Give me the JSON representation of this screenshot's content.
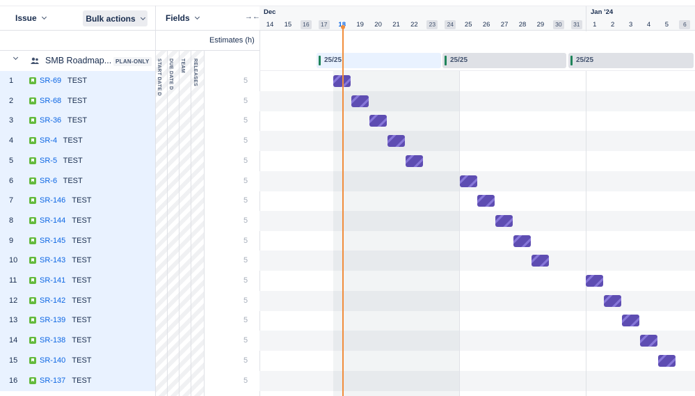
{
  "header": {
    "issue_label": "Issue",
    "bulk_actions_label": "Bulk actions",
    "fields_label": "Fields",
    "collapse_icon": "collapse-arrows-icon",
    "estimates_label": "Estimates (h)"
  },
  "parent": {
    "title": "SMB Roadmap...",
    "badge": "PLAN-ONLY",
    "icon": "people-icon"
  },
  "fields": {
    "columns": [
      "START DATE",
      "DUE DATE",
      "TEAM",
      "RELEASES"
    ],
    "start_date_marker": "D",
    "due_date_marker": "D"
  },
  "issues": [
    {
      "num": "1",
      "key": "SR-69",
      "summary": "TEST",
      "estimate": "5"
    },
    {
      "num": "2",
      "key": "SR-68",
      "summary": "TEST",
      "estimate": "5"
    },
    {
      "num": "3",
      "key": "SR-36",
      "summary": "TEST",
      "estimate": "5"
    },
    {
      "num": "4",
      "key": "SR-4",
      "summary": "TEST",
      "estimate": "5"
    },
    {
      "num": "5",
      "key": "SR-5",
      "summary": "TEST",
      "estimate": "5"
    },
    {
      "num": "6",
      "key": "SR-6",
      "summary": "TEST",
      "estimate": "5"
    },
    {
      "num": "7",
      "key": "SR-146",
      "summary": "TEST",
      "estimate": "5"
    },
    {
      "num": "8",
      "key": "SR-144",
      "summary": "TEST",
      "estimate": "5"
    },
    {
      "num": "9",
      "key": "SR-145",
      "summary": "TEST",
      "estimate": "5"
    },
    {
      "num": "10",
      "key": "SR-143",
      "summary": "TEST",
      "estimate": "5"
    },
    {
      "num": "11",
      "key": "SR-141",
      "summary": "TEST",
      "estimate": "5"
    },
    {
      "num": "12",
      "key": "SR-142",
      "summary": "TEST",
      "estimate": "5"
    },
    {
      "num": "13",
      "key": "SR-139",
      "summary": "TEST",
      "estimate": "5"
    },
    {
      "num": "14",
      "key": "SR-138",
      "summary": "TEST",
      "estimate": "5"
    },
    {
      "num": "15",
      "key": "SR-140",
      "summary": "TEST",
      "estimate": "5"
    },
    {
      "num": "16",
      "key": "SR-137",
      "summary": "TEST",
      "estimate": "5"
    }
  ],
  "timeline": {
    "months": [
      {
        "label": "Dec"
      },
      {
        "label": "Jan ’24"
      }
    ],
    "days": [
      {
        "label": "14",
        "weekend": false
      },
      {
        "label": "15",
        "weekend": false
      },
      {
        "label": "16",
        "weekend": true
      },
      {
        "label": "17",
        "weekend": true
      },
      {
        "label": "18",
        "weekend": false,
        "today": true
      },
      {
        "label": "19",
        "weekend": false
      },
      {
        "label": "20",
        "weekend": false
      },
      {
        "label": "21",
        "weekend": false
      },
      {
        "label": "22",
        "weekend": false
      },
      {
        "label": "23",
        "weekend": true
      },
      {
        "label": "24",
        "weekend": true
      },
      {
        "label": "25",
        "weekend": false
      },
      {
        "label": "26",
        "weekend": false
      },
      {
        "label": "27",
        "weekend": false
      },
      {
        "label": "28",
        "weekend": false
      },
      {
        "label": "29",
        "weekend": false
      },
      {
        "label": "30",
        "weekend": true
      },
      {
        "label": "31",
        "weekend": true
      },
      {
        "label": "1",
        "weekend": false
      },
      {
        "label": "2",
        "weekend": false
      },
      {
        "label": "3",
        "weekend": false
      },
      {
        "label": "4",
        "weekend": false
      },
      {
        "label": "5",
        "weekend": false
      },
      {
        "label": "6",
        "weekend": true
      }
    ],
    "releases": [
      {
        "label": "25/25",
        "highlight": true
      },
      {
        "label": "25/25",
        "highlight": false
      },
      {
        "label": "25/25",
        "highlight": false
      }
    ],
    "bar_start_days": [
      "18",
      "19",
      "20",
      "21",
      "22",
      "25",
      "26",
      "27",
      "28",
      "29",
      "1",
      "2",
      "3",
      "4",
      "5"
    ],
    "colors": {
      "bar": "#5e4db2",
      "today": "#f18d3b",
      "release_marker": "#1f845a",
      "link": "#0c66e4",
      "row_highlight": "#e9f2ff"
    }
  }
}
